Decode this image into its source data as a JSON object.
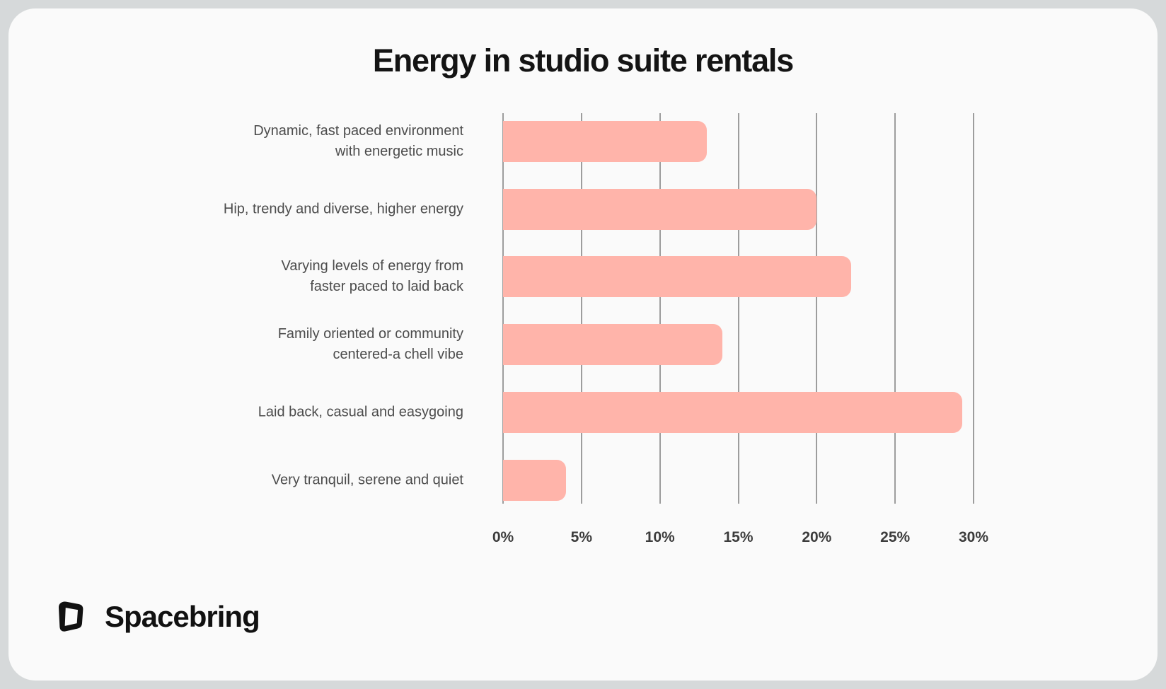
{
  "title": "Energy in studio suite rentals",
  "brand": {
    "name": "Spacebring",
    "icon": "spacebring-cube-icon"
  },
  "colors": {
    "bar": "#ffb4aa",
    "gridline": "#9d9d9d",
    "card_bg": "#fafafa",
    "outer_bg": "#d6d9da",
    "title_text": "#141414",
    "category_text": "#4c4c4c",
    "tick_text": "#3c3c3c",
    "brand_text": "#111111"
  },
  "chart_data": {
    "type": "bar",
    "orientation": "horizontal",
    "title": "Energy in studio suite rentals",
    "categories": [
      "Dynamic, fast paced environment with energetic music",
      "Hip, trendy and diverse, higher energy",
      "Varying levels of energy from faster paced to laid back",
      "Family oriented or community centered-a chell vibe",
      "Laid back, casual and easygoing",
      "Very tranquil, serene and quiet"
    ],
    "category_lines": [
      [
        "Dynamic, fast paced environment",
        "with energetic music"
      ],
      [
        "Hip, trendy and diverse, higher energy"
      ],
      [
        "Varying levels of energy from",
        "faster paced to laid back"
      ],
      [
        "Family oriented or community",
        "centered-a chell vibe"
      ],
      [
        "Laid back, casual and easygoing"
      ],
      [
        "Very tranquil, serene and quiet"
      ]
    ],
    "values": [
      13,
      20,
      22.2,
      14,
      29.3,
      4
    ],
    "unit": "%",
    "xlabel": "",
    "ylabel": "",
    "xlim": [
      0,
      30
    ],
    "x_ticks": [
      "0%",
      "5%",
      "10%",
      "15%",
      "20%",
      "25%",
      "30%"
    ],
    "grid": "vertical",
    "legend": false,
    "bar_color": "#ffb4aa"
  }
}
